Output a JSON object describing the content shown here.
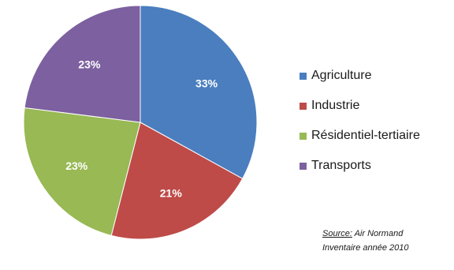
{
  "chart_data": {
    "type": "pie",
    "title": "",
    "categories": [
      "Agriculture",
      "Industrie",
      "Résidentiel-tertiaire",
      "Transports"
    ],
    "values": [
      33,
      21,
      23,
      23
    ],
    "labels": [
      "33%",
      "21%",
      "23%",
      "23%"
    ],
    "colors": [
      "#4a7ebf",
      "#be4b48",
      "#98b954",
      "#7d60a0"
    ],
    "legend_position": "right"
  },
  "legend": {
    "items": [
      {
        "label": "Agriculture",
        "color": "#4a7ebf"
      },
      {
        "label": "Industrie",
        "color": "#be4b48"
      },
      {
        "label": "Résidentiel-tertiaire",
        "color": "#98b954"
      },
      {
        "label": "Transports",
        "color": "#7d60a0"
      }
    ]
  },
  "source": {
    "prefix": "Source:",
    "org": " Air Normand",
    "line2": "Inventaire année 2010"
  }
}
